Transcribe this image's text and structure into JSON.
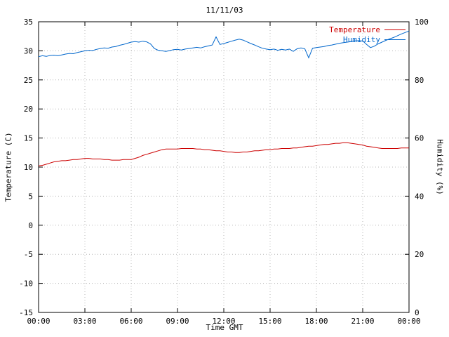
{
  "chart_data": {
    "type": "line",
    "title": "11/11/03",
    "xlabel": "Time GMT",
    "grid": true,
    "legend_position": "top-right-inside",
    "x_axis": {
      "min": 0,
      "max": 24,
      "tick_hours": [
        0,
        3,
        6,
        9,
        12,
        15,
        18,
        21,
        24
      ],
      "tick_labels": [
        "00:00",
        "03:00",
        "06:00",
        "09:00",
        "12:00",
        "15:00",
        "18:00",
        "21:00",
        "00:00"
      ]
    },
    "y_left": {
      "label": "Temperature (C)",
      "min": -15,
      "max": 35,
      "ticks": [
        -15,
        -10,
        -5,
        0,
        5,
        10,
        15,
        20,
        25,
        30,
        35
      ]
    },
    "y_right": {
      "label": "Humidity (%)",
      "min": 0,
      "max": 100,
      "ticks": [
        0,
        20,
        40,
        60,
        80,
        100
      ]
    },
    "series": [
      {
        "name": "Temperature",
        "axis": "left",
        "color": "#cc0000",
        "x_step_hours": 0.25,
        "values": [
          10.2,
          10.3,
          10.5,
          10.7,
          10.9,
          11.0,
          11.1,
          11.1,
          11.2,
          11.3,
          11.3,
          11.4,
          11.5,
          11.5,
          11.4,
          11.4,
          11.4,
          11.3,
          11.3,
          11.2,
          11.2,
          11.2,
          11.3,
          11.3,
          11.3,
          11.5,
          11.7,
          12.0,
          12.2,
          12.4,
          12.6,
          12.8,
          13.0,
          13.1,
          13.1,
          13.1,
          13.1,
          13.2,
          13.2,
          13.2,
          13.2,
          13.1,
          13.1,
          13.0,
          13.0,
          12.9,
          12.8,
          12.8,
          12.7,
          12.6,
          12.6,
          12.5,
          12.5,
          12.6,
          12.6,
          12.7,
          12.8,
          12.8,
          12.9,
          13.0,
          13.0,
          13.1,
          13.1,
          13.2,
          13.2,
          13.2,
          13.3,
          13.3,
          13.4,
          13.5,
          13.6,
          13.6,
          13.7,
          13.8,
          13.9,
          13.9,
          14.0,
          14.1,
          14.1,
          14.2,
          14.2,
          14.1,
          14.0,
          13.9,
          13.8,
          13.6,
          13.5,
          13.4,
          13.3,
          13.2,
          13.2,
          13.2,
          13.2,
          13.2,
          13.3,
          13.3,
          13.3
        ]
      },
      {
        "name": "Humidity",
        "axis": "right",
        "color": "#0066cc",
        "x_step_hours": 0.25,
        "values": [
          88.0,
          88.3,
          88.1,
          88.4,
          88.5,
          88.3,
          88.6,
          88.9,
          89.1,
          89.0,
          89.4,
          89.7,
          90.0,
          90.2,
          90.1,
          90.5,
          90.8,
          91.0,
          90.9,
          91.3,
          91.5,
          91.9,
          92.2,
          92.6,
          93.0,
          93.2,
          93.0,
          93.3,
          93.1,
          92.4,
          90.8,
          90.2,
          90.0,
          89.8,
          90.1,
          90.4,
          90.5,
          90.3,
          90.6,
          90.8,
          91.0,
          91.2,
          91.0,
          91.4,
          91.7,
          92.0,
          94.8,
          92.2,
          92.5,
          92.9,
          93.3,
          93.7,
          94.0,
          93.7,
          93.1,
          92.5,
          92.0,
          91.4,
          90.9,
          90.6,
          90.4,
          90.6,
          90.2,
          90.5,
          90.3,
          90.6,
          89.8,
          90.7,
          91.0,
          90.7,
          87.6,
          90.9,
          91.1,
          91.3,
          91.5,
          91.8,
          92.0,
          92.3,
          92.6,
          92.8,
          93.0,
          93.2,
          93.4,
          93.5,
          93.4,
          92.2,
          91.1,
          91.6,
          92.4,
          93.0,
          93.6,
          94.1,
          94.6,
          95.2,
          95.8,
          96.3,
          96.8
        ]
      }
    ]
  }
}
